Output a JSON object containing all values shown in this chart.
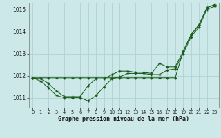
{
  "xlabel": "Graphe pression niveau de la mer (hPa)",
  "bg_color": "#cce8e8",
  "grid_color": "#aacece",
  "line_color": "#1a5c1a",
  "ylim": [
    1010.55,
    1015.3
  ],
  "xlim": [
    -0.5,
    23.5
  ],
  "yticks": [
    1011,
    1012,
    1013,
    1014,
    1015
  ],
  "xticks": [
    0,
    1,
    2,
    3,
    4,
    5,
    6,
    7,
    8,
    9,
    10,
    11,
    12,
    13,
    14,
    15,
    16,
    17,
    18,
    19,
    20,
    21,
    22,
    23
  ],
  "s1_x": [
    0,
    1,
    2,
    3,
    4,
    5,
    6,
    7,
    8,
    9,
    10,
    11,
    12,
    13,
    14,
    15,
    16,
    17,
    18,
    19,
    20,
    21,
    22,
    23
  ],
  "s1_y": [
    1011.9,
    1011.9,
    1011.9,
    1011.9,
    1011.9,
    1011.9,
    1011.9,
    1011.9,
    1011.9,
    1011.9,
    1011.9,
    1011.9,
    1011.9,
    1011.9,
    1011.9,
    1011.9,
    1011.9,
    1011.9,
    1011.9,
    1013.1,
    1013.85,
    1014.3,
    1015.1,
    1015.2
  ],
  "s2_x": [
    0,
    1,
    2,
    3,
    4,
    5,
    6,
    7,
    8,
    9,
    10,
    11,
    12,
    13,
    14,
    15,
    16,
    17,
    18,
    19,
    20,
    21,
    22,
    23
  ],
  "s2_y": [
    1011.9,
    1011.85,
    1011.65,
    1011.3,
    1011.05,
    1011.05,
    1011.05,
    1011.55,
    1011.85,
    1011.85,
    1012.05,
    1012.2,
    1012.2,
    1012.15,
    1012.15,
    1012.1,
    1012.55,
    1012.4,
    1012.4,
    1013.1,
    1013.85,
    1014.3,
    1015.1,
    1015.2
  ],
  "s3_x": [
    0,
    1,
    2,
    3,
    4,
    5,
    6,
    7,
    8,
    9,
    10,
    11,
    12,
    13,
    14,
    15,
    16,
    17,
    18,
    19,
    20,
    21,
    22,
    23
  ],
  "s3_y": [
    1011.9,
    1011.75,
    1011.45,
    1011.1,
    1011.0,
    1011.0,
    1011.0,
    1010.85,
    1011.1,
    1011.5,
    1011.85,
    1011.95,
    1012.1,
    1012.1,
    1012.1,
    1012.05,
    1012.05,
    1012.25,
    1012.3,
    1013.0,
    1013.75,
    1014.2,
    1015.0,
    1015.15
  ]
}
